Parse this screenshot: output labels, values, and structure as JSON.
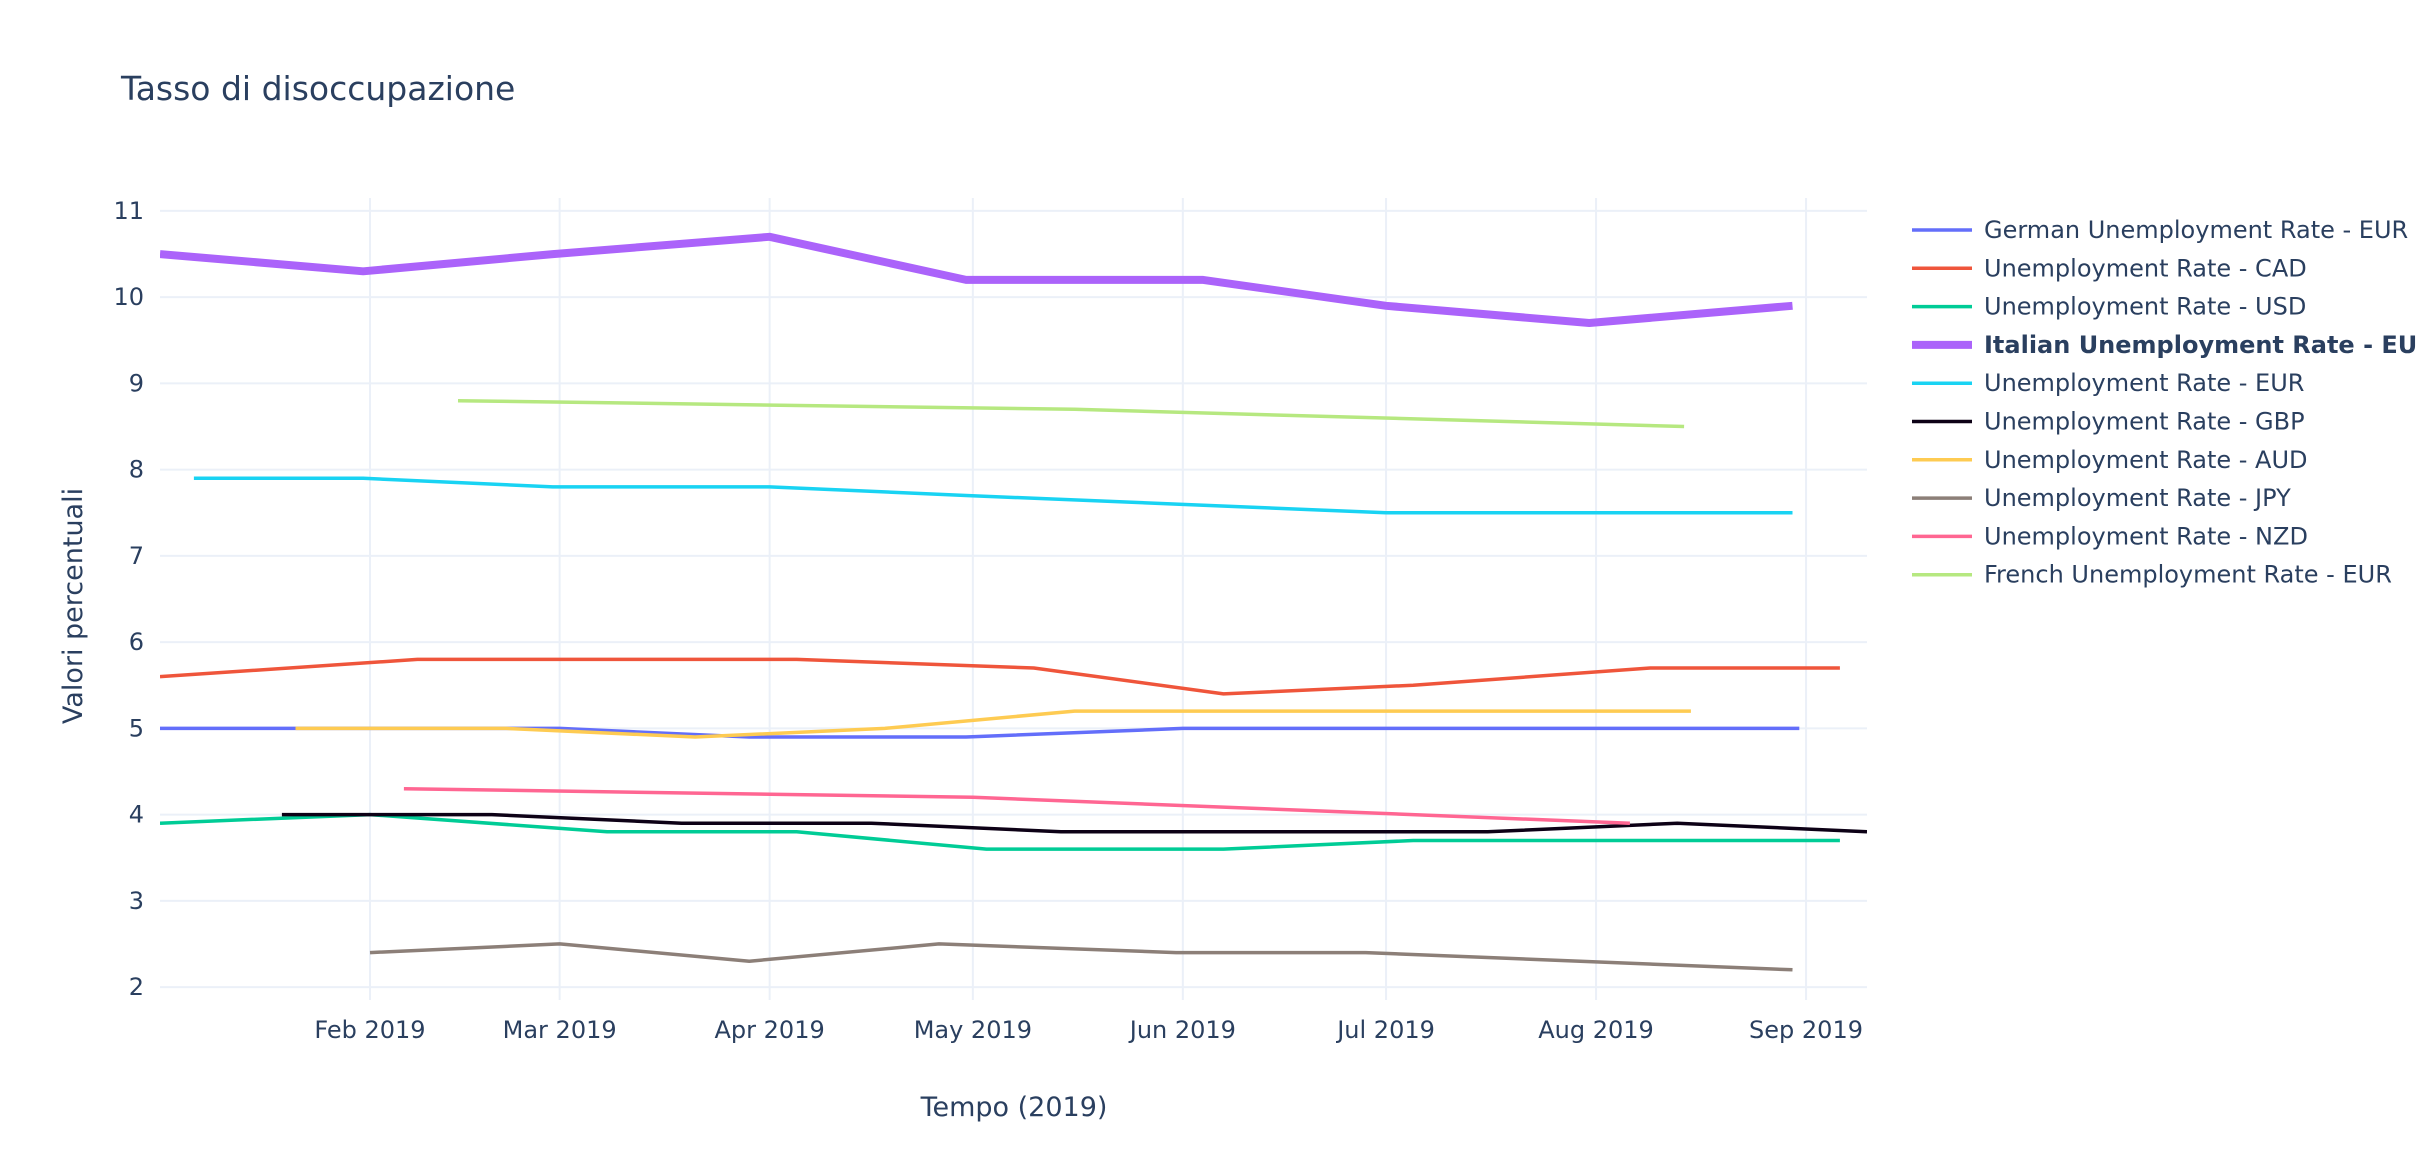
{
  "chart_data": {
    "type": "line",
    "title": "Tasso di disoccupazione",
    "xlabel": "Tempo (2019)",
    "ylabel": "Valori percentuali",
    "x_range": [
      "2019-01-01",
      "2019-09-10"
    ],
    "ylim": [
      1.85,
      11.15
    ],
    "y_ticks": [
      2,
      3,
      4,
      5,
      6,
      7,
      8,
      9,
      10,
      11
    ],
    "x_ticks": [
      {
        "date": "2019-02-01",
        "label": "Feb 2019"
      },
      {
        "date": "2019-03-01",
        "label": "Mar 2019"
      },
      {
        "date": "2019-04-01",
        "label": "Apr 2019"
      },
      {
        "date": "2019-05-01",
        "label": "May 2019"
      },
      {
        "date": "2019-06-01",
        "label": "Jun 2019"
      },
      {
        "date": "2019-07-01",
        "label": "Jul 2019"
      },
      {
        "date": "2019-08-01",
        "label": "Aug 2019"
      },
      {
        "date": "2019-09-01",
        "label": "Sep 2019"
      }
    ],
    "grid": true,
    "legend_position": "right",
    "series": [
      {
        "name": "German Unemployment Rate - EUR",
        "color": "#636efa",
        "bold": false,
        "points": [
          [
            "2019-01-01",
            5.0
          ],
          [
            "2019-01-21",
            5.0
          ],
          [
            "2019-03-01",
            5.0
          ],
          [
            "2019-03-29",
            4.9
          ],
          [
            "2019-04-30",
            4.9
          ],
          [
            "2019-06-01",
            5.0
          ],
          [
            "2019-06-30",
            5.0
          ],
          [
            "2019-07-31",
            5.0
          ],
          [
            "2019-08-31",
            5.0
          ]
        ]
      },
      {
        "name": "Unemployment Rate - CAD",
        "color": "#ef553b",
        "bold": false,
        "points": [
          [
            "2019-01-01",
            5.6
          ],
          [
            "2019-02-08",
            5.8
          ],
          [
            "2019-03-08",
            5.8
          ],
          [
            "2019-04-05",
            5.8
          ],
          [
            "2019-05-10",
            5.7
          ],
          [
            "2019-06-07",
            5.4
          ],
          [
            "2019-07-05",
            5.5
          ],
          [
            "2019-08-09",
            5.7
          ],
          [
            "2019-09-06",
            5.7
          ]
        ]
      },
      {
        "name": "Unemployment Rate - USD",
        "color": "#00cc96",
        "bold": false,
        "points": [
          [
            "2019-01-01",
            3.9
          ],
          [
            "2019-02-01",
            4.0
          ],
          [
            "2019-03-08",
            3.8
          ],
          [
            "2019-04-05",
            3.8
          ],
          [
            "2019-05-03",
            3.6
          ],
          [
            "2019-06-07",
            3.6
          ],
          [
            "2019-07-05",
            3.7
          ],
          [
            "2019-08-02",
            3.7
          ],
          [
            "2019-09-06",
            3.7
          ]
        ]
      },
      {
        "name": "Italian  Unemployment Rate - EUR",
        "color": "#ab63fa",
        "bold": true,
        "points": [
          [
            "2019-01-01",
            10.5
          ],
          [
            "2019-01-31",
            10.3
          ],
          [
            "2019-02-28",
            10.5
          ],
          [
            "2019-04-01",
            10.7
          ],
          [
            "2019-04-30",
            10.2
          ],
          [
            "2019-06-04",
            10.2
          ],
          [
            "2019-07-01",
            9.9
          ],
          [
            "2019-07-31",
            9.7
          ],
          [
            "2019-08-30",
            9.9
          ]
        ]
      },
      {
        "name": "Unemployment Rate - EUR",
        "color": "#19d3f3",
        "bold": false,
        "points": [
          [
            "2019-01-06",
            7.9
          ],
          [
            "2019-01-31",
            7.9
          ],
          [
            "2019-02-28",
            7.8
          ],
          [
            "2019-04-01",
            7.8
          ],
          [
            "2019-04-30",
            7.7
          ],
          [
            "2019-05-31",
            7.6
          ],
          [
            "2019-07-01",
            7.5
          ],
          [
            "2019-07-31",
            7.5
          ],
          [
            "2019-08-30",
            7.5
          ]
        ]
      },
      {
        "name": "Unemployment Rate - GBP",
        "color": "#0d0116",
        "bold": false,
        "points": [
          [
            "2019-01-19",
            4.0
          ],
          [
            "2019-02-19",
            4.0
          ],
          [
            "2019-03-19",
            3.9
          ],
          [
            "2019-04-16",
            3.9
          ],
          [
            "2019-05-14",
            3.8
          ],
          [
            "2019-06-11",
            3.8
          ],
          [
            "2019-07-16",
            3.8
          ],
          [
            "2019-08-13",
            3.9
          ],
          [
            "2019-09-10",
            3.8
          ]
        ]
      },
      {
        "name": "Unemployment Rate - AUD",
        "color": "#fecb52",
        "bold": false,
        "points": [
          [
            "2019-01-21",
            5.0
          ],
          [
            "2019-02-21",
            5.0
          ],
          [
            "2019-03-21",
            4.9
          ],
          [
            "2019-04-18",
            5.0
          ],
          [
            "2019-05-16",
            5.2
          ],
          [
            "2019-06-13",
            5.2
          ],
          [
            "2019-07-18",
            5.2
          ],
          [
            "2019-08-15",
            5.2
          ]
        ]
      },
      {
        "name": "Unemployment Rate - JPY",
        "color": "#8c7f78",
        "bold": false,
        "points": [
          [
            "2019-02-01",
            2.4
          ],
          [
            "2019-03-01",
            2.5
          ],
          [
            "2019-03-29",
            2.3
          ],
          [
            "2019-04-26",
            2.5
          ],
          [
            "2019-05-31",
            2.4
          ],
          [
            "2019-06-28",
            2.4
          ],
          [
            "2019-08-30",
            2.2
          ]
        ]
      },
      {
        "name": "Unemployment Rate - NZD",
        "color": "#ff6692",
        "bold": false,
        "points": [
          [
            "2019-02-06",
            4.3
          ],
          [
            "2019-05-01",
            4.2
          ],
          [
            "2019-08-06",
            3.9
          ]
        ]
      },
      {
        "name": "French Unemployment Rate - EUR",
        "color": "#b6e880",
        "bold": false,
        "points": [
          [
            "2019-02-14",
            8.8
          ],
          [
            "2019-05-16",
            8.7
          ],
          [
            "2019-08-14",
            8.5
          ]
        ]
      }
    ]
  }
}
